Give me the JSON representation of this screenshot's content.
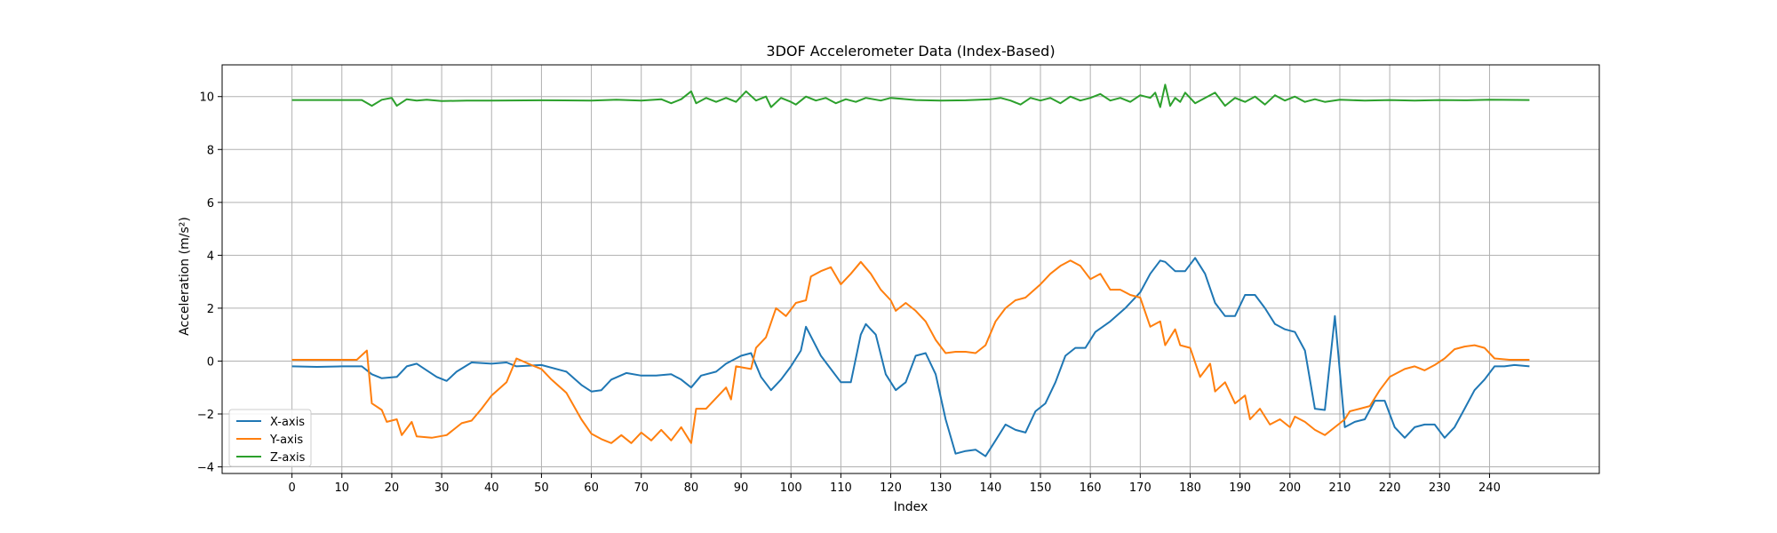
{
  "chart_data": {
    "type": "line",
    "title": "3DOF Accelerometer Data (Index-Based)",
    "xlabel": "Index",
    "ylabel": "Acceleration (m/s²)",
    "xlim": [
      -14,
      262
    ],
    "ylim": [
      -4.25,
      11.2
    ],
    "xticks": [
      0,
      10,
      20,
      30,
      40,
      50,
      60,
      70,
      80,
      90,
      100,
      110,
      120,
      130,
      140,
      150,
      160,
      170,
      180,
      190,
      200,
      210,
      220,
      230,
      240
    ],
    "yticks": [
      -4,
      -2,
      0,
      2,
      4,
      6,
      8,
      10
    ],
    "grid": true,
    "legend_position": "lower-left",
    "series": [
      {
        "name": "X-axis",
        "color": "#1f77b4",
        "points": [
          [
            0,
            -0.2
          ],
          [
            5,
            -0.22
          ],
          [
            10,
            -0.2
          ],
          [
            14,
            -0.2
          ],
          [
            16,
            -0.5
          ],
          [
            18,
            -0.65
          ],
          [
            21,
            -0.6
          ],
          [
            23,
            -0.2
          ],
          [
            25,
            -0.1
          ],
          [
            27,
            -0.35
          ],
          [
            29,
            -0.6
          ],
          [
            31,
            -0.75
          ],
          [
            33,
            -0.4
          ],
          [
            36,
            -0.05
          ],
          [
            40,
            -0.1
          ],
          [
            43,
            -0.05
          ],
          [
            45,
            -0.2
          ],
          [
            50,
            -0.15
          ],
          [
            55,
            -0.4
          ],
          [
            58,
            -0.9
          ],
          [
            60,
            -1.15
          ],
          [
            62,
            -1.1
          ],
          [
            64,
            -0.7
          ],
          [
            67,
            -0.45
          ],
          [
            70,
            -0.55
          ],
          [
            73,
            -0.55
          ],
          [
            76,
            -0.5
          ],
          [
            78,
            -0.7
          ],
          [
            80,
            -1.0
          ],
          [
            82,
            -0.55
          ],
          [
            85,
            -0.4
          ],
          [
            87,
            -0.1
          ],
          [
            90,
            0.2
          ],
          [
            92,
            0.3
          ],
          [
            94,
            -0.6
          ],
          [
            96,
            -1.1
          ],
          [
            98,
            -0.7
          ],
          [
            100,
            -0.2
          ],
          [
            102,
            0.4
          ],
          [
            103,
            1.3
          ],
          [
            106,
            0.2
          ],
          [
            108,
            -0.3
          ],
          [
            110,
            -0.8
          ],
          [
            112,
            -0.8
          ],
          [
            114,
            1.0
          ],
          [
            115,
            1.4
          ],
          [
            117,
            1.0
          ],
          [
            119,
            -0.5
          ],
          [
            121,
            -1.1
          ],
          [
            123,
            -0.8
          ],
          [
            125,
            0.2
          ],
          [
            127,
            0.3
          ],
          [
            129,
            -0.5
          ],
          [
            131,
            -2.2
          ],
          [
            133,
            -3.5
          ],
          [
            135,
            -3.4
          ],
          [
            137,
            -3.35
          ],
          [
            139,
            -3.6
          ],
          [
            141,
            -3.0
          ],
          [
            143,
            -2.4
          ],
          [
            145,
            -2.6
          ],
          [
            147,
            -2.7
          ],
          [
            149,
            -1.9
          ],
          [
            151,
            -1.6
          ],
          [
            153,
            -0.8
          ],
          [
            155,
            0.2
          ],
          [
            157,
            0.5
          ],
          [
            159,
            0.5
          ],
          [
            161,
            1.1
          ],
          [
            164,
            1.5
          ],
          [
            167,
            2.0
          ],
          [
            170,
            2.6
          ],
          [
            172,
            3.3
          ],
          [
            174,
            3.8
          ],
          [
            175,
            3.75
          ],
          [
            177,
            3.4
          ],
          [
            179,
            3.4
          ],
          [
            181,
            3.9
          ],
          [
            183,
            3.3
          ],
          [
            185,
            2.2
          ],
          [
            187,
            1.7
          ],
          [
            189,
            1.7
          ],
          [
            191,
            2.5
          ],
          [
            193,
            2.5
          ],
          [
            195,
            2.0
          ],
          [
            197,
            1.4
          ],
          [
            199,
            1.2
          ],
          [
            201,
            1.1
          ],
          [
            203,
            0.4
          ],
          [
            205,
            -1.8
          ],
          [
            207,
            -1.85
          ],
          [
            209,
            1.7
          ],
          [
            211,
            -2.5
          ],
          [
            213,
            -2.3
          ],
          [
            215,
            -2.2
          ],
          [
            217,
            -1.5
          ],
          [
            219,
            -1.5
          ],
          [
            221,
            -2.5
          ],
          [
            223,
            -2.9
          ],
          [
            225,
            -2.5
          ],
          [
            227,
            -2.4
          ],
          [
            229,
            -2.4
          ],
          [
            231,
            -2.9
          ],
          [
            233,
            -2.5
          ],
          [
            235,
            -1.8
          ],
          [
            237,
            -1.1
          ],
          [
            239,
            -0.7
          ],
          [
            241,
            -0.2
          ],
          [
            243,
            -0.2
          ],
          [
            245,
            -0.15
          ],
          [
            248,
            -0.2
          ]
        ]
      },
      {
        "name": "Y-axis",
        "color": "#ff7f0e",
        "points": [
          [
            0,
            0.05
          ],
          [
            5,
            0.05
          ],
          [
            10,
            0.05
          ],
          [
            13,
            0.05
          ],
          [
            15,
            0.4
          ],
          [
            16,
            -1.6
          ],
          [
            18,
            -1.85
          ],
          [
            19,
            -2.3
          ],
          [
            21,
            -2.2
          ],
          [
            22,
            -2.8
          ],
          [
            24,
            -2.3
          ],
          [
            25,
            -2.85
          ],
          [
            28,
            -2.9
          ],
          [
            31,
            -2.8
          ],
          [
            34,
            -2.35
          ],
          [
            36,
            -2.25
          ],
          [
            38,
            -1.8
          ],
          [
            40,
            -1.3
          ],
          [
            43,
            -0.8
          ],
          [
            45,
            0.1
          ],
          [
            48,
            -0.15
          ],
          [
            50,
            -0.3
          ],
          [
            52,
            -0.7
          ],
          [
            55,
            -1.2
          ],
          [
            58,
            -2.2
          ],
          [
            60,
            -2.75
          ],
          [
            62,
            -2.95
          ],
          [
            64,
            -3.1
          ],
          [
            66,
            -2.8
          ],
          [
            68,
            -3.1
          ],
          [
            70,
            -2.7
          ],
          [
            72,
            -3.0
          ],
          [
            74,
            -2.6
          ],
          [
            76,
            -3.0
          ],
          [
            78,
            -2.5
          ],
          [
            80,
            -3.1
          ],
          [
            81,
            -1.8
          ],
          [
            83,
            -1.8
          ],
          [
            85,
            -1.4
          ],
          [
            87,
            -1.0
          ],
          [
            88,
            -1.45
          ],
          [
            89,
            -0.2
          ],
          [
            92,
            -0.3
          ],
          [
            93,
            0.5
          ],
          [
            95,
            0.9
          ],
          [
            97,
            2.0
          ],
          [
            99,
            1.7
          ],
          [
            101,
            2.2
          ],
          [
            103,
            2.3
          ],
          [
            104,
            3.2
          ],
          [
            106,
            3.4
          ],
          [
            108,
            3.55
          ],
          [
            110,
            2.9
          ],
          [
            112,
            3.3
          ],
          [
            114,
            3.75
          ],
          [
            116,
            3.3
          ],
          [
            118,
            2.7
          ],
          [
            120,
            2.3
          ],
          [
            121,
            1.9
          ],
          [
            123,
            2.2
          ],
          [
            125,
            1.9
          ],
          [
            127,
            1.5
          ],
          [
            129,
            0.8
          ],
          [
            131,
            0.3
          ],
          [
            133,
            0.35
          ],
          [
            135,
            0.35
          ],
          [
            137,
            0.3
          ],
          [
            139,
            0.6
          ],
          [
            141,
            1.5
          ],
          [
            143,
            2.0
          ],
          [
            145,
            2.3
          ],
          [
            147,
            2.4
          ],
          [
            150,
            2.9
          ],
          [
            152,
            3.3
          ],
          [
            154,
            3.6
          ],
          [
            156,
            3.8
          ],
          [
            158,
            3.6
          ],
          [
            160,
            3.1
          ],
          [
            162,
            3.3
          ],
          [
            164,
            2.7
          ],
          [
            166,
            2.7
          ],
          [
            168,
            2.5
          ],
          [
            170,
            2.4
          ],
          [
            172,
            1.3
          ],
          [
            174,
            1.5
          ],
          [
            175,
            0.6
          ],
          [
            177,
            1.2
          ],
          [
            178,
            0.6
          ],
          [
            180,
            0.5
          ],
          [
            182,
            -0.6
          ],
          [
            184,
            -0.1
          ],
          [
            185,
            -1.15
          ],
          [
            187,
            -0.8
          ],
          [
            189,
            -1.6
          ],
          [
            191,
            -1.3
          ],
          [
            192,
            -2.2
          ],
          [
            194,
            -1.8
          ],
          [
            196,
            -2.4
          ],
          [
            198,
            -2.2
          ],
          [
            200,
            -2.5
          ],
          [
            201,
            -2.1
          ],
          [
            203,
            -2.3
          ],
          [
            205,
            -2.6
          ],
          [
            207,
            -2.8
          ],
          [
            209,
            -2.5
          ],
          [
            211,
            -2.2
          ],
          [
            212,
            -1.9
          ],
          [
            214,
            -1.8
          ],
          [
            216,
            -1.7
          ],
          [
            218,
            -1.1
          ],
          [
            220,
            -0.6
          ],
          [
            223,
            -0.3
          ],
          [
            225,
            -0.2
          ],
          [
            227,
            -0.35
          ],
          [
            229,
            -0.15
          ],
          [
            231,
            0.1
          ],
          [
            233,
            0.45
          ],
          [
            235,
            0.55
          ],
          [
            237,
            0.6
          ],
          [
            239,
            0.5
          ],
          [
            241,
            0.1
          ],
          [
            244,
            0.05
          ],
          [
            248,
            0.05
          ]
        ]
      },
      {
        "name": "Z-axis",
        "color": "#2ca02c",
        "points": [
          [
            0,
            9.87
          ],
          [
            8,
            9.87
          ],
          [
            14,
            9.87
          ],
          [
            16,
            9.65
          ],
          [
            18,
            9.88
          ],
          [
            20,
            9.95
          ],
          [
            21,
            9.65
          ],
          [
            23,
            9.9
          ],
          [
            25,
            9.85
          ],
          [
            27,
            9.88
          ],
          [
            30,
            9.83
          ],
          [
            35,
            9.85
          ],
          [
            40,
            9.85
          ],
          [
            50,
            9.86
          ],
          [
            60,
            9.85
          ],
          [
            65,
            9.88
          ],
          [
            70,
            9.85
          ],
          [
            74,
            9.9
          ],
          [
            76,
            9.75
          ],
          [
            78,
            9.9
          ],
          [
            80,
            10.2
          ],
          [
            81,
            9.75
          ],
          [
            83,
            9.95
          ],
          [
            85,
            9.8
          ],
          [
            87,
            9.95
          ],
          [
            89,
            9.8
          ],
          [
            91,
            10.2
          ],
          [
            93,
            9.85
          ],
          [
            95,
            10.0
          ],
          [
            96,
            9.6
          ],
          [
            98,
            9.95
          ],
          [
            100,
            9.8
          ],
          [
            101,
            9.7
          ],
          [
            103,
            10.0
          ],
          [
            105,
            9.85
          ],
          [
            107,
            9.95
          ],
          [
            109,
            9.75
          ],
          [
            111,
            9.9
          ],
          [
            113,
            9.8
          ],
          [
            115,
            9.95
          ],
          [
            118,
            9.85
          ],
          [
            120,
            9.95
          ],
          [
            125,
            9.87
          ],
          [
            130,
            9.85
          ],
          [
            135,
            9.86
          ],
          [
            140,
            9.9
          ],
          [
            142,
            9.95
          ],
          [
            144,
            9.85
          ],
          [
            146,
            9.7
          ],
          [
            148,
            9.95
          ],
          [
            150,
            9.85
          ],
          [
            152,
            9.95
          ],
          [
            154,
            9.75
          ],
          [
            156,
            10.0
          ],
          [
            158,
            9.85
          ],
          [
            160,
            9.95
          ],
          [
            162,
            10.1
          ],
          [
            164,
            9.85
          ],
          [
            166,
            9.95
          ],
          [
            168,
            9.8
          ],
          [
            170,
            10.05
          ],
          [
            172,
            9.95
          ],
          [
            173,
            10.15
          ],
          [
            174,
            9.6
          ],
          [
            175,
            10.45
          ],
          [
            176,
            9.65
          ],
          [
            177,
            9.95
          ],
          [
            178,
            9.8
          ],
          [
            179,
            10.15
          ],
          [
            181,
            9.75
          ],
          [
            183,
            9.95
          ],
          [
            185,
            10.15
          ],
          [
            187,
            9.65
          ],
          [
            189,
            9.95
          ],
          [
            191,
            9.8
          ],
          [
            193,
            10.0
          ],
          [
            195,
            9.7
          ],
          [
            197,
            10.05
          ],
          [
            199,
            9.85
          ],
          [
            201,
            10.0
          ],
          [
            203,
            9.8
          ],
          [
            205,
            9.9
          ],
          [
            207,
            9.8
          ],
          [
            210,
            9.88
          ],
          [
            215,
            9.85
          ],
          [
            220,
            9.87
          ],
          [
            225,
            9.85
          ],
          [
            230,
            9.87
          ],
          [
            235,
            9.86
          ],
          [
            240,
            9.88
          ],
          [
            248,
            9.87
          ]
        ]
      }
    ]
  }
}
